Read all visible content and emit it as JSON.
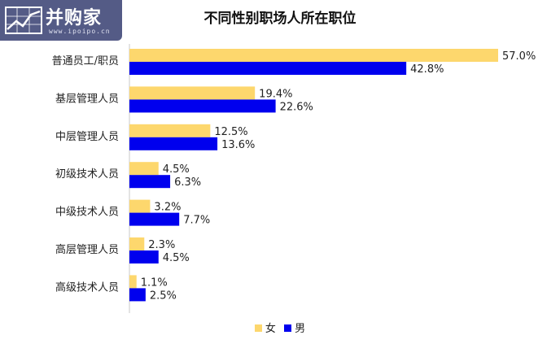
{
  "logo": {
    "brand": "并购家",
    "url": "www.ipoipo.cn"
  },
  "colors": {
    "female": "#fdd76d",
    "male": "#0000ee",
    "axis": "#c8c8c8"
  },
  "chart_data": {
    "type": "bar",
    "orientation": "horizontal",
    "title": "不同性别职场人所在职位",
    "categories": [
      "普通员工/职员",
      "基层管理人员",
      "中层管理人员",
      "初级技术人员",
      "中级技术人员",
      "高层管理人员",
      "高级技术人员"
    ],
    "series": [
      {
        "name": "女",
        "values": [
          57.0,
          19.4,
          12.5,
          4.5,
          3.2,
          2.3,
          1.1
        ],
        "labels": [
          "57.0%",
          "19.4%",
          "12.5%",
          "4.5%",
          "3.2%",
          "2.3%",
          "1.1%"
        ]
      },
      {
        "name": "男",
        "values": [
          42.8,
          22.6,
          13.6,
          6.3,
          7.7,
          4.5,
          2.5
        ],
        "labels": [
          "42.8%",
          "22.6%",
          "13.6%",
          "6.3%",
          "7.7%",
          "4.5%",
          "2.5%"
        ]
      }
    ],
    "xlim": [
      0,
      60
    ],
    "grid": false,
    "legend_position": "bottom"
  }
}
